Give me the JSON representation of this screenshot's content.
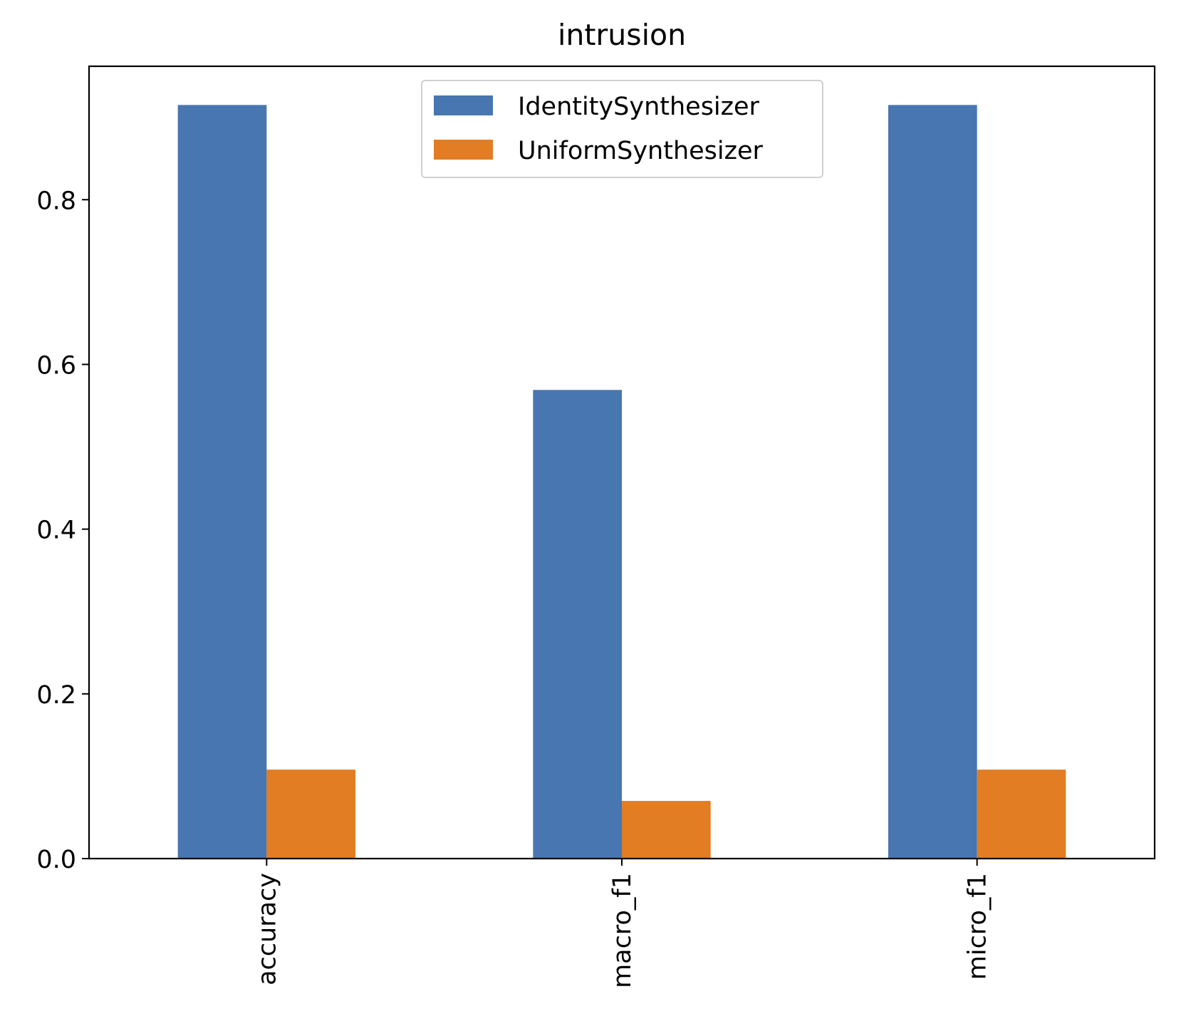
{
  "chart_data": {
    "type": "bar",
    "title": "intrusion",
    "xlabel": "",
    "ylabel": "",
    "categories": [
      "accuracy",
      "macro_f1",
      "micro_f1"
    ],
    "series": [
      {
        "name": "IdentitySynthesizer",
        "color": "#4876b0",
        "values": [
          0.915,
          0.569,
          0.915
        ]
      },
      {
        "name": "UniformSynthesizer",
        "color": "#e27d24",
        "values": [
          0.108,
          0.07,
          0.108
        ]
      }
    ],
    "ylim": [
      0,
      0.962
    ],
    "yticks": [
      0.0,
      0.2,
      0.4,
      0.6,
      0.8
    ],
    "ytick_labels": [
      "0.0",
      "0.2",
      "0.4",
      "0.6",
      "0.8"
    ],
    "grid": false,
    "legend_position": "upper center"
  }
}
